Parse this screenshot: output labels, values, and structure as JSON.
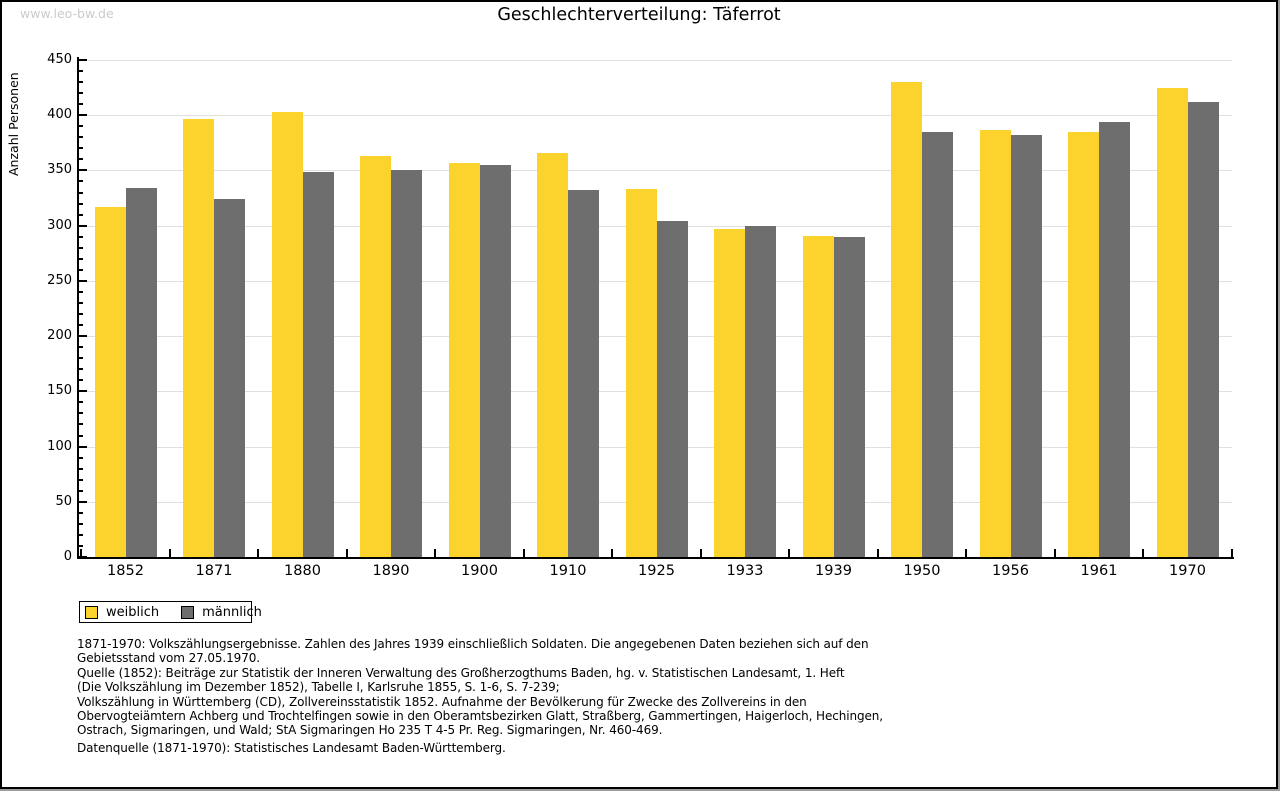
{
  "watermark": "www.leo-bw.de",
  "chart_data": {
    "type": "bar",
    "title": "Geschlechterverteilung: Täferrot",
    "ylabel": "Anzahl Personen",
    "categories": [
      "1852",
      "1871",
      "1880",
      "1890",
      "1900",
      "1910",
      "1925",
      "1933",
      "1939",
      "1950",
      "1956",
      "1961",
      "1970"
    ],
    "series": [
      {
        "name": "weiblich",
        "color": "#fcd32c",
        "values": [
          317,
          397,
          403,
          363,
          357,
          366,
          333,
          297,
          291,
          430,
          387,
          385,
          425
        ]
      },
      {
        "name": "männlich",
        "color": "#6e6e6e",
        "values": [
          334,
          324,
          349,
          350,
          355,
          332,
          304,
          300,
          290,
          385,
          382,
          394,
          412
        ]
      }
    ],
    "ylim": [
      0,
      450
    ],
    "ytick_major": 50,
    "ytick_minor": 10,
    "grid": true,
    "legend_position": "below-left"
  },
  "footer": {
    "notes": [
      "1871-1970: Volkszählungsergebnisse. Zahlen des Jahres 1939 einschließlich Soldaten. Die angegebenen Daten beziehen sich auf den",
      "Gebietsstand vom 27.05.1970.",
      "Quelle (1852): Beiträge zur Statistik der Inneren Verwaltung des Großherzogthums Baden, hg. v. Statistischen Landesamt, 1. Heft",
      "(Die Volkszählung im Dezember 1852), Tabelle I, Karlsruhe 1855, S. 1-6, S. 7-239;",
      "Volkszählung in Württemberg (CD), Zollvereinsstatistik 1852. Aufnahme der Bevölkerung für Zwecke des Zollvereins in den",
      "Obervogteiämtern Achberg und Trochtelfingen sowie in den Oberamtsbezirken Glatt, Straßberg, Gammertingen, Haigerloch, Hechingen,",
      "Ostrach, Sigmaringen, und Wald; StA Sigmaringen Ho 235 T 4-5 Pr. Reg. Sigmaringen, Nr. 460-469."
    ],
    "datasource": "Datenquelle (1871-1970): Statistisches Landesamt Baden-Württemberg."
  },
  "colors": {
    "female": "#fcd32c",
    "male": "#6e6e6e",
    "grid": "#e0e0e0",
    "axis": "#000000",
    "watermark": "#cbcbcb"
  }
}
